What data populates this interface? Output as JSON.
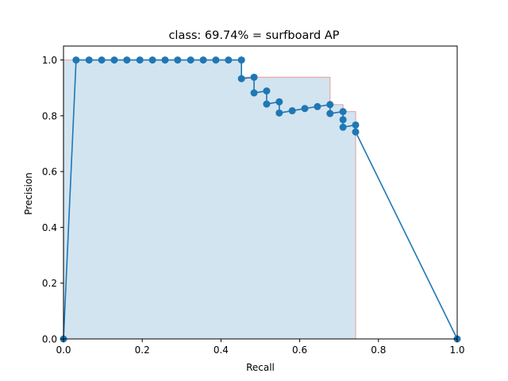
{
  "chart_data": {
    "type": "line",
    "title": "class: 69.74% = surfboard AP",
    "xlabel": "Recall",
    "ylabel": "Precision",
    "xlim": [
      0.0,
      1.0
    ],
    "ylim": [
      0.0,
      1.05
    ],
    "xticks": [
      0.0,
      0.2,
      0.4,
      0.6,
      0.8,
      1.0
    ],
    "xtick_labels": [
      "0.0",
      "0.2",
      "0.4",
      "0.6",
      "0.8",
      "1.0"
    ],
    "yticks": [
      0.0,
      0.2,
      0.4,
      0.6,
      0.8,
      1.0
    ],
    "ytick_labels": [
      "0.0",
      "0.2",
      "0.4",
      "0.6",
      "0.8",
      "1.0"
    ],
    "grid": false,
    "legend": false,
    "colors": {
      "line": "#1f77b4",
      "fill": "#1f77b4",
      "fill_opacity": 0.2,
      "interp_edge": "#e8a8a8"
    },
    "series": [
      {
        "role": "precision-recall-curve",
        "x": [
          0.0,
          0.032,
          0.065,
          0.097,
          0.129,
          0.161,
          0.194,
          0.226,
          0.258,
          0.29,
          0.323,
          0.355,
          0.387,
          0.419,
          0.452,
          0.452,
          0.484,
          0.484,
          0.516,
          0.516,
          0.548,
          0.548,
          0.581,
          0.613,
          0.645,
          0.677,
          0.677,
          0.71,
          0.71,
          0.71,
          0.742,
          0.742,
          1.0
        ],
        "y": [
          0.0,
          1.0,
          1.0,
          1.0,
          1.0,
          1.0,
          1.0,
          1.0,
          1.0,
          1.0,
          1.0,
          1.0,
          1.0,
          1.0,
          1.0,
          0.933,
          0.938,
          0.882,
          0.889,
          0.842,
          0.85,
          0.81,
          0.818,
          0.826,
          0.833,
          0.84,
          0.808,
          0.815,
          0.786,
          0.759,
          0.767,
          0.742,
          0.0
        ]
      },
      {
        "role": "interpolated-area",
        "x": [
          0.0,
          0.0,
          0.032,
          0.452,
          0.452,
          0.677,
          0.677,
          0.71,
          0.71,
          0.742,
          0.742
        ],
        "y": [
          0.0,
          1.0,
          1.0,
          1.0,
          0.938,
          0.938,
          0.84,
          0.84,
          0.815,
          0.815,
          0.767
        ]
      }
    ]
  }
}
